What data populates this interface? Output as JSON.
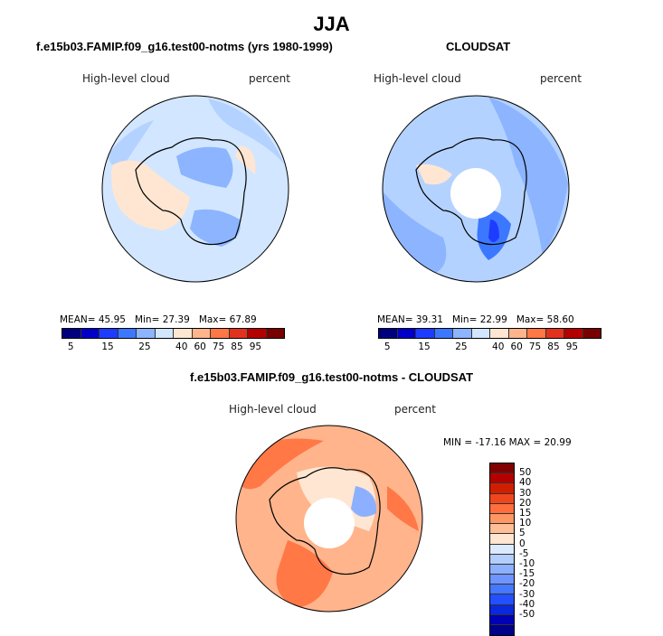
{
  "figure": {
    "title": "JJA",
    "panels": [
      {
        "title": "f.e15b03.FAMIP.f09_g16.test00-notms (yrs 1980-1999)",
        "variable": "High-level cloud",
        "units": "percent",
        "stats": {
          "mean_label": "MEAN=",
          "mean": "45.95",
          "min_label": "Min=",
          "min": "27.39",
          "max_label": "Max=",
          "max": "67.89"
        }
      },
      {
        "title": "CLOUDSAT",
        "variable": "High-level cloud",
        "units": "percent",
        "stats": {
          "mean_label": "MEAN=",
          "mean": "39.31",
          "min_label": "Min=",
          "min": "22.99",
          "max_label": "Max=",
          "max": "58.60"
        }
      },
      {
        "title": "f.e15b03.FAMIP.f09_g16.test00-notms - CLOUDSAT",
        "variable": "High-level cloud",
        "units": "percent",
        "range_text": "MIN = -17.16 MAX =  20.99"
      }
    ],
    "colorbar_abs": {
      "colors": [
        "#00007f",
        "#0000c8",
        "#1e3cff",
        "#3c78ff",
        "#8cb4ff",
        "#d2e6ff",
        "#ffe6d2",
        "#ffb48c",
        "#ff7846",
        "#e1321e",
        "#b40000",
        "#780000"
      ],
      "tick_labels": [
        "5",
        "15",
        "25",
        "40",
        "60",
        "75",
        "85",
        "95"
      ]
    },
    "colorbar_diff": {
      "colors": [
        "#7f0000",
        "#b40000",
        "#d21e00",
        "#f0461e",
        "#ff6e3c",
        "#ff9664",
        "#ffbe96",
        "#ffe6d2",
        "#dceaff",
        "#b4cdff",
        "#8cb0ff",
        "#6e94ff",
        "#4678ff",
        "#2350ff",
        "#0a28dc",
        "#0000b4",
        "#00008c"
      ],
      "tick_labels": [
        "50",
        "40",
        "30",
        "20",
        "15",
        "10",
        "5",
        "0",
        "-5",
        "-10",
        "-15",
        "-20",
        "-30",
        "-40",
        "-50"
      ]
    },
    "map_colors": {
      "ocean_light": "#d2e6ff",
      "ocean_mid": "#b4d2ff",
      "ocean_blue": "#8cb4ff",
      "deep_blue": "#3c78ff",
      "navy": "#1e3cff",
      "land_orange": "#ffe6d2",
      "diff_orange": "#ffb48c",
      "diff_red": "#ff7846",
      "diff_pale": "#ffe6d2",
      "diff_blue": "#8cb0ff",
      "missing": "#ffffff"
    }
  }
}
